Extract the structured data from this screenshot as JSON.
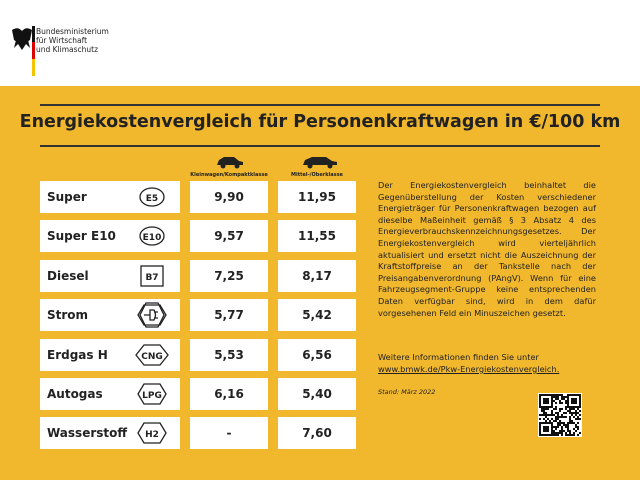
{
  "header": {
    "ministry": [
      "Bundesministerium",
      "für Wirtschaft",
      "und Klimaschutz"
    ]
  },
  "title": "Energiekostenvergleich für Personenkraftwagen in €/100 km",
  "table": {
    "columns": [
      "Kleinwagen/Kompaktklasse",
      "Mittel-/Oberklasse"
    ],
    "rows": [
      {
        "fuel": "Super",
        "badge": "E5",
        "values": [
          "9,90",
          "11,95"
        ]
      },
      {
        "fuel": "Super E10",
        "badge": "E10",
        "values": [
          "9,57",
          "11,55"
        ]
      },
      {
        "fuel": "Diesel",
        "badge": "B7",
        "values": [
          "7,25",
          "8,17"
        ]
      },
      {
        "fuel": "Strom",
        "badge": null,
        "values": [
          "5,77",
          "5,42"
        ]
      },
      {
        "fuel": "Erdgas H",
        "badge": "CNG",
        "values": [
          "5,53",
          "6,56"
        ]
      },
      {
        "fuel": "Autogas",
        "badge": "LPG",
        "values": [
          "6,16",
          "5,40"
        ]
      },
      {
        "fuel": "Wasserstoff",
        "badge": "H2",
        "values": [
          "-",
          "7,60"
        ]
      }
    ]
  },
  "description": "Der Energiekostenvergleich beinhaltet die Gegenüberstellung der Kosten verschiedener Energieträger für Personenkraftwagen bezogen auf dieselbe Maßeinheit gemäß § 3 Absatz 4 des Energieverbrauchskennzeichnungsgesetzes. Der Energiekostenvergleich wird vierteljährlich aktualisiert und ersetzt nicht die Auszeichnung der Kraftstoffpreise an der Tankstelle nach der Preisangabenverordnung (PAngV). Wenn für eine Fahrzeugsegment-Gruppe keine entsprechenden Daten verfügbar sind, wird in dem dafür vorgesehenen Feld ein Minuszeichen gesetzt.",
  "more_info": "Weitere Informationen finden Sie unter",
  "link": "www.bmwk.de/Pkw-Energiekostenvergleich.",
  "stand": "Stand: März 2022"
}
